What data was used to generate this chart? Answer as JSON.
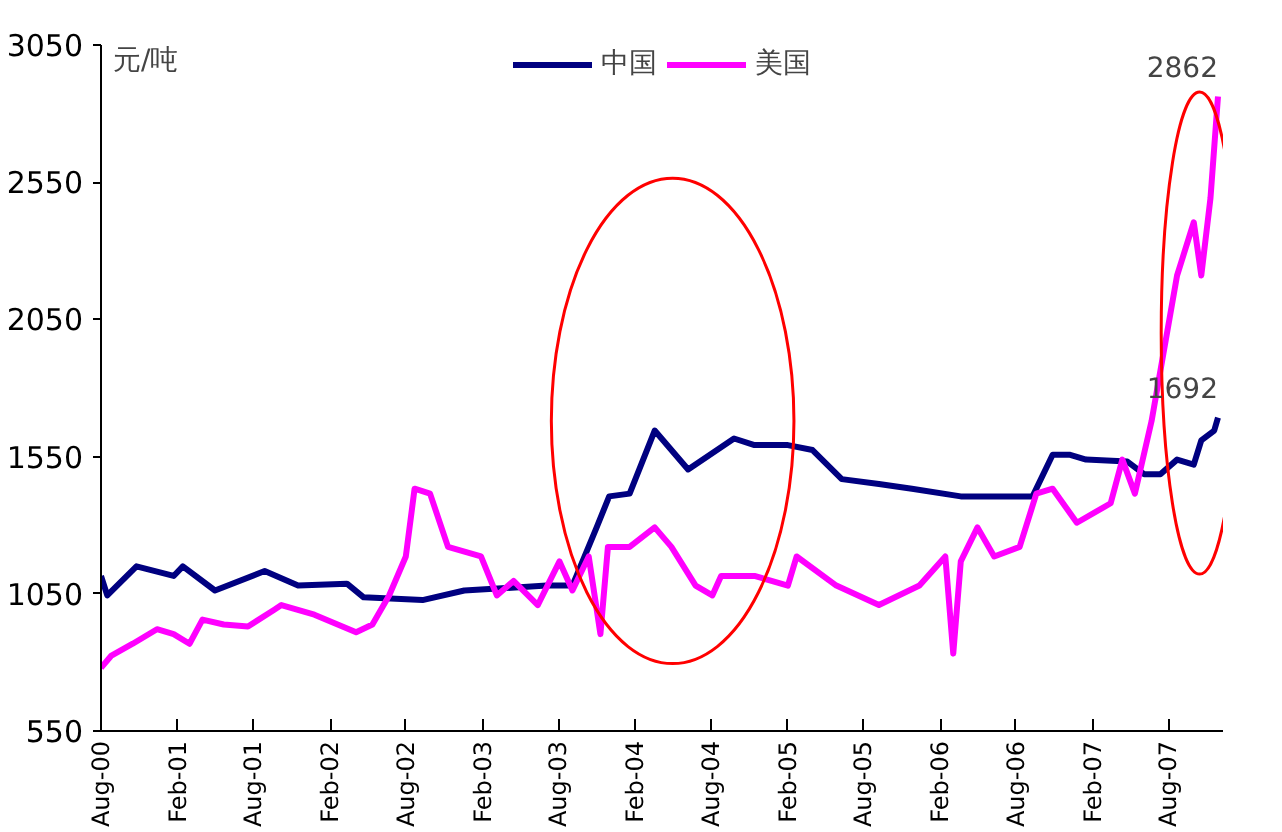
{
  "chart_data": {
    "type": "line",
    "ylabel": "元/吨",
    "xlim": [
      "2000-08-01",
      "2007-12-10"
    ],
    "ylim": [
      550,
      3050
    ],
    "yticks": [
      550,
      1050,
      1550,
      2050,
      2550,
      3050
    ],
    "xticks": [
      {
        "value": "2000-08-01",
        "label": "Aug-00"
      },
      {
        "value": "2001-02-01",
        "label": "Feb-01"
      },
      {
        "value": "2001-08-01",
        "label": "Aug-01"
      },
      {
        "value": "2002-02-01",
        "label": "Feb-02"
      },
      {
        "value": "2002-08-01",
        "label": "Aug-02"
      },
      {
        "value": "2003-02-01",
        "label": "Feb-03"
      },
      {
        "value": "2003-08-01",
        "label": "Aug-03"
      },
      {
        "value": "2004-02-01",
        "label": "Feb-04"
      },
      {
        "value": "2004-08-01",
        "label": "Aug-04"
      },
      {
        "value": "2005-02-01",
        "label": "Feb-05"
      },
      {
        "value": "2005-08-01",
        "label": "Aug-05"
      },
      {
        "value": "2006-02-01",
        "label": "Feb-06"
      },
      {
        "value": "2006-08-01",
        "label": "Aug-06"
      },
      {
        "value": "2007-02-01",
        "label": "Feb-07"
      },
      {
        "value": "2007-08-01",
        "label": "Aug-07"
      }
    ],
    "grid": false,
    "legend": "top",
    "marker": "none",
    "line_style": "solid",
    "series": [
      {
        "name": "中国",
        "color": "#000080",
        "x": [
          "2000-08-01",
          "2000-08-16",
          "2000-10-25",
          "2001-01-22",
          "2001-02-13",
          "2001-05-01",
          "2001-08-28",
          "2001-11-16",
          "2002-03-13",
          "2002-04-22",
          "2002-09-10",
          "2002-12-19",
          "2003-07-04",
          "2003-09-04",
          "2003-11-01",
          "2003-12-01",
          "2004-01-19",
          "2004-03-19",
          "2004-06-07",
          "2004-09-25",
          "2004-11-13",
          "2005-02-01",
          "2005-04-01",
          "2005-06-10",
          "2005-09-07",
          "2005-11-25",
          "2006-03-22",
          "2006-09-10",
          "2006-10-28",
          "2006-12-07",
          "2007-01-16",
          "2007-04-25",
          "2007-06-04",
          "2007-07-13",
          "2007-08-22",
          "2007-10-01",
          "2007-10-19",
          "2007-11-19",
          "2007-11-28"
        ],
        "values": [
          1115,
          1044,
          1150,
          1115,
          1150,
          1062,
          1133,
          1080,
          1087,
          1037,
          1027,
          1062,
          1080,
          1080,
          1292,
          1405,
          1415,
          1645,
          1503,
          1616,
          1592,
          1592,
          1574,
          1468,
          1450,
          1433,
          1405,
          1405,
          1557,
          1557,
          1539,
          1532,
          1486,
          1486,
          1539,
          1521,
          1609,
          1645,
          1692
        ]
      },
      {
        "name": "美国",
        "color": "#ff00ff",
        "x": [
          "2000-08-01",
          "2000-08-26",
          "2000-10-16",
          "2000-12-13",
          "2001-01-22",
          "2001-03-01",
          "2001-04-01",
          "2001-05-22",
          "2001-07-19",
          "2001-09-19",
          "2001-10-07",
          "2001-12-25",
          "2002-04-04",
          "2002-05-13",
          "2002-06-22",
          "2002-08-01",
          "2002-08-22",
          "2002-09-28",
          "2002-11-10",
          "2003-01-28",
          "2003-03-07",
          "2003-04-16",
          "2003-06-13",
          "2003-08-04",
          "2003-09-04",
          "2003-10-13",
          "2003-11-10",
          "2003-11-28",
          "2004-01-19",
          "2004-03-19",
          "2004-04-28",
          "2004-06-25",
          "2004-08-04",
          "2004-08-25",
          "2004-11-13",
          "2005-02-01",
          "2005-02-22",
          "2005-05-28",
          "2005-09-07",
          "2005-12-13",
          "2006-02-13",
          "2006-03-04",
          "2006-03-22",
          "2006-05-01",
          "2006-06-10",
          "2006-08-10",
          "2006-09-19",
          "2006-10-28",
          "2006-12-25",
          "2007-03-16",
          "2007-04-13",
          "2007-05-13",
          "2007-06-22",
          "2007-08-22",
          "2007-10-01",
          "2007-10-19",
          "2007-11-10",
          "2007-11-28"
        ],
        "values": [
          780,
          825,
          868,
          921,
          903,
          868,
          956,
          938,
          931,
          991,
          1009,
          974,
          910,
          938,
          1044,
          1186,
          1433,
          1415,
          1221,
          1186,
          1044,
          1097,
          1009,
          1168,
          1062,
          1186,
          903,
          1221,
          1221,
          1292,
          1221,
          1080,
          1044,
          1115,
          1115,
          1080,
          1186,
          1080,
          1009,
          1080,
          1186,
          832,
          1168,
          1292,
          1186,
          1221,
          1415,
          1433,
          1309,
          1380,
          1539,
          1415,
          1680,
          2210,
          2404,
          2210,
          2492,
          2862
        ]
      }
    ],
    "annotations": [
      {
        "text": "2862",
        "x": "2007-11-28",
        "y": 2862
      },
      {
        "text": "1692",
        "x": "2007-11-28",
        "y": 1692
      }
    ]
  }
}
